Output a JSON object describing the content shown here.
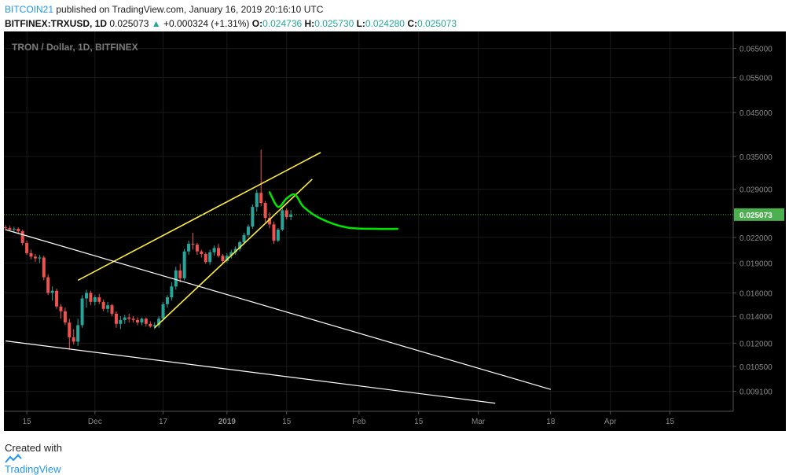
{
  "header": {
    "author": "BITCOIN21",
    "published_text": "published on TradingView.com, January 16, 2019 20:16:10 UTC",
    "symbol": "BITFINEX:TRXUSD, 1D",
    "last_price": "0.025073",
    "change_arrow": "▲",
    "change": "+0.000324 (+1.31%)",
    "o_label": "O:",
    "o_value": "0.024736",
    "h_label": "H:",
    "h_value": "0.025730",
    "l_label": "L:",
    "l_value": "0.024280",
    "c_label": "C:",
    "c_value": "0.025073"
  },
  "footer": {
    "created_with": "Created with",
    "brand": "TradingView"
  },
  "colors": {
    "background": "#000000",
    "up_candle": "#26a69a",
    "down_candle": "#ef5350",
    "yellow_lines": "#ffeb3b",
    "white_lines": "#ffffff",
    "green_projection": "#00e600",
    "price_line": "#4caf50"
  },
  "chart_data": {
    "type": "candlestick",
    "title": "TRON / Dollar, 1D, BITFINEX",
    "y_scale": "log",
    "ylim": [
      0.0083,
      0.0685
    ],
    "y_ticks": [
      "0.065000",
      "0.055000",
      "0.045000",
      "0.035000",
      "0.029000",
      "0.022000",
      "0.019000",
      "0.016000",
      "0.014000",
      "0.012000",
      "0.010500",
      "0.009100"
    ],
    "y_tick_values": [
      0.065,
      0.055,
      0.045,
      0.035,
      0.029,
      0.022,
      0.019,
      0.016,
      0.014,
      0.012,
      0.0105,
      0.0091
    ],
    "x_ticks": [
      "15",
      "Dec",
      "17",
      "2019",
      "15",
      "Feb",
      "15",
      "Mar",
      "18",
      "Apr",
      "15"
    ],
    "x_tick_dates": [
      "2018-11-15",
      "2018-12-01",
      "2018-12-17",
      "2019-01-01",
      "2019-01-15",
      "2019-02-01",
      "2019-02-15",
      "2019-03-01",
      "2019-03-18",
      "2019-04-01",
      "2019-04-15"
    ],
    "x_range": [
      "2018-11-10",
      "2019-04-20"
    ],
    "last_price": 0.025073,
    "last_price_label": "0.025073",
    "candles": [
      {
        "date": "2018-11-10",
        "o": 0.0233,
        "h": 0.0236,
        "l": 0.0229,
        "c": 0.0232
      },
      {
        "date": "2018-11-11",
        "o": 0.0232,
        "h": 0.0235,
        "l": 0.0228,
        "c": 0.023
      },
      {
        "date": "2018-11-12",
        "o": 0.023,
        "h": 0.0234,
        "l": 0.0227,
        "c": 0.0231
      },
      {
        "date": "2018-11-13",
        "o": 0.0231,
        "h": 0.0233,
        "l": 0.0225,
        "c": 0.0228
      },
      {
        "date": "2018-11-14",
        "o": 0.0228,
        "h": 0.023,
        "l": 0.021,
        "c": 0.0213
      },
      {
        "date": "2018-11-15",
        "o": 0.0213,
        "h": 0.0216,
        "l": 0.0199,
        "c": 0.0201
      },
      {
        "date": "2018-11-16",
        "o": 0.0201,
        "h": 0.0205,
        "l": 0.0194,
        "c": 0.0197
      },
      {
        "date": "2018-11-17",
        "o": 0.0197,
        "h": 0.02,
        "l": 0.0191,
        "c": 0.0195
      },
      {
        "date": "2018-11-18",
        "o": 0.0195,
        "h": 0.0199,
        "l": 0.019,
        "c": 0.0196
      },
      {
        "date": "2018-11-19",
        "o": 0.0196,
        "h": 0.0198,
        "l": 0.0172,
        "c": 0.0175
      },
      {
        "date": "2018-11-20",
        "o": 0.0175,
        "h": 0.0178,
        "l": 0.0158,
        "c": 0.016
      },
      {
        "date": "2018-11-21",
        "o": 0.016,
        "h": 0.0166,
        "l": 0.0153,
        "c": 0.0162
      },
      {
        "date": "2018-11-22",
        "o": 0.0162,
        "h": 0.0164,
        "l": 0.0146,
        "c": 0.0148
      },
      {
        "date": "2018-11-23",
        "o": 0.0148,
        "h": 0.015,
        "l": 0.0138,
        "c": 0.0144
      },
      {
        "date": "2018-11-24",
        "o": 0.0144,
        "h": 0.0147,
        "l": 0.0133,
        "c": 0.0135
      },
      {
        "date": "2018-11-25",
        "o": 0.0135,
        "h": 0.0138,
        "l": 0.0116,
        "c": 0.0124
      },
      {
        "date": "2018-11-26",
        "o": 0.0124,
        "h": 0.013,
        "l": 0.0119,
        "c": 0.0121
      },
      {
        "date": "2018-11-27",
        "o": 0.0121,
        "h": 0.0138,
        "l": 0.0118,
        "c": 0.0133
      },
      {
        "date": "2018-11-28",
        "o": 0.0133,
        "h": 0.0158,
        "l": 0.0131,
        "c": 0.0155
      },
      {
        "date": "2018-11-29",
        "o": 0.0155,
        "h": 0.0163,
        "l": 0.0147,
        "c": 0.016
      },
      {
        "date": "2018-11-30",
        "o": 0.016,
        "h": 0.0162,
        "l": 0.0149,
        "c": 0.0152
      },
      {
        "date": "2018-12-01",
        "o": 0.0152,
        "h": 0.0158,
        "l": 0.0149,
        "c": 0.0156
      },
      {
        "date": "2018-12-02",
        "o": 0.0156,
        "h": 0.0159,
        "l": 0.015,
        "c": 0.0152
      },
      {
        "date": "2018-12-03",
        "o": 0.0152,
        "h": 0.0154,
        "l": 0.0144,
        "c": 0.0146
      },
      {
        "date": "2018-12-04",
        "o": 0.0146,
        "h": 0.0152,
        "l": 0.0143,
        "c": 0.0149
      },
      {
        "date": "2018-12-05",
        "o": 0.0149,
        "h": 0.015,
        "l": 0.014,
        "c": 0.0142
      },
      {
        "date": "2018-12-06",
        "o": 0.0142,
        "h": 0.0144,
        "l": 0.0131,
        "c": 0.0134
      },
      {
        "date": "2018-12-07",
        "o": 0.0134,
        "h": 0.014,
        "l": 0.013,
        "c": 0.0137
      },
      {
        "date": "2018-12-08",
        "o": 0.0137,
        "h": 0.0141,
        "l": 0.0134,
        "c": 0.0139
      },
      {
        "date": "2018-12-09",
        "o": 0.0139,
        "h": 0.0142,
        "l": 0.0135,
        "c": 0.0138
      },
      {
        "date": "2018-12-10",
        "o": 0.0138,
        "h": 0.014,
        "l": 0.0135,
        "c": 0.0137
      },
      {
        "date": "2018-12-11",
        "o": 0.0137,
        "h": 0.0139,
        "l": 0.0133,
        "c": 0.0135
      },
      {
        "date": "2018-12-12",
        "o": 0.0135,
        "h": 0.0139,
        "l": 0.0133,
        "c": 0.0138
      },
      {
        "date": "2018-12-13",
        "o": 0.0138,
        "h": 0.0139,
        "l": 0.0132,
        "c": 0.0134
      },
      {
        "date": "2018-12-14",
        "o": 0.0134,
        "h": 0.0136,
        "l": 0.0131,
        "c": 0.0132
      },
      {
        "date": "2018-12-15",
        "o": 0.0132,
        "h": 0.0135,
        "l": 0.013,
        "c": 0.0133
      },
      {
        "date": "2018-12-16",
        "o": 0.0133,
        "h": 0.014,
        "l": 0.0131,
        "c": 0.0138
      },
      {
        "date": "2018-12-17",
        "o": 0.0138,
        "h": 0.0152,
        "l": 0.0136,
        "c": 0.015
      },
      {
        "date": "2018-12-18",
        "o": 0.015,
        "h": 0.0158,
        "l": 0.0147,
        "c": 0.0156
      },
      {
        "date": "2018-12-19",
        "o": 0.0156,
        "h": 0.017,
        "l": 0.0153,
        "c": 0.0166
      },
      {
        "date": "2018-12-20",
        "o": 0.0166,
        "h": 0.0186,
        "l": 0.0163,
        "c": 0.0182
      },
      {
        "date": "2018-12-21",
        "o": 0.0182,
        "h": 0.0189,
        "l": 0.017,
        "c": 0.0174
      },
      {
        "date": "2018-12-22",
        "o": 0.0174,
        "h": 0.0206,
        "l": 0.0172,
        "c": 0.0203
      },
      {
        "date": "2018-12-23",
        "o": 0.0203,
        "h": 0.0216,
        "l": 0.0199,
        "c": 0.0212
      },
      {
        "date": "2018-12-24",
        "o": 0.0212,
        "h": 0.0226,
        "l": 0.0205,
        "c": 0.0211
      },
      {
        "date": "2018-12-25",
        "o": 0.0211,
        "h": 0.0213,
        "l": 0.0199,
        "c": 0.0203
      },
      {
        "date": "2018-12-26",
        "o": 0.0203,
        "h": 0.0205,
        "l": 0.0196,
        "c": 0.02
      },
      {
        "date": "2018-12-27",
        "o": 0.02,
        "h": 0.0202,
        "l": 0.0189,
        "c": 0.0191
      },
      {
        "date": "2018-12-28",
        "o": 0.0191,
        "h": 0.0205,
        "l": 0.0188,
        "c": 0.0202
      },
      {
        "date": "2018-12-29",
        "o": 0.0202,
        "h": 0.021,
        "l": 0.0198,
        "c": 0.0207
      },
      {
        "date": "2018-12-30",
        "o": 0.0207,
        "h": 0.0212,
        "l": 0.0196,
        "c": 0.0198
      },
      {
        "date": "2018-12-31",
        "o": 0.0198,
        "h": 0.02,
        "l": 0.0189,
        "c": 0.0192
      },
      {
        "date": "2019-01-01",
        "o": 0.0192,
        "h": 0.0201,
        "l": 0.019,
        "c": 0.0198
      },
      {
        "date": "2019-01-02",
        "o": 0.0198,
        "h": 0.0205,
        "l": 0.0195,
        "c": 0.0202
      },
      {
        "date": "2019-01-03",
        "o": 0.0202,
        "h": 0.0209,
        "l": 0.0199,
        "c": 0.0206
      },
      {
        "date": "2019-01-04",
        "o": 0.0206,
        "h": 0.0216,
        "l": 0.0203,
        "c": 0.0214
      },
      {
        "date": "2019-01-05",
        "o": 0.0214,
        "h": 0.0226,
        "l": 0.0211,
        "c": 0.0223
      },
      {
        "date": "2019-01-06",
        "o": 0.0223,
        "h": 0.0237,
        "l": 0.022,
        "c": 0.0234
      },
      {
        "date": "2019-01-07",
        "o": 0.0234,
        "h": 0.0266,
        "l": 0.0231,
        "c": 0.0262
      },
      {
        "date": "2019-01-08",
        "o": 0.0262,
        "h": 0.0289,
        "l": 0.0255,
        "c": 0.0284
      },
      {
        "date": "2019-01-09",
        "o": 0.0284,
        "h": 0.0364,
        "l": 0.0263,
        "c": 0.0268
      },
      {
        "date": "2019-01-10",
        "o": 0.0268,
        "h": 0.0271,
        "l": 0.024,
        "c": 0.0246
      },
      {
        "date": "2019-01-11",
        "o": 0.0246,
        "h": 0.0254,
        "l": 0.0232,
        "c": 0.0237
      },
      {
        "date": "2019-01-12",
        "o": 0.0237,
        "h": 0.0241,
        "l": 0.0212,
        "c": 0.0216
      },
      {
        "date": "2019-01-13",
        "o": 0.0216,
        "h": 0.0232,
        "l": 0.0214,
        "c": 0.023
      },
      {
        "date": "2019-01-14",
        "o": 0.023,
        "h": 0.0262,
        "l": 0.0228,
        "c": 0.0257
      },
      {
        "date": "2019-01-15",
        "o": 0.0257,
        "h": 0.026,
        "l": 0.0244,
        "c": 0.0247
      },
      {
        "date": "2019-01-16",
        "o": 0.024736,
        "h": 0.02573,
        "l": 0.02428,
        "c": 0.025073
      }
    ],
    "drawings": [
      {
        "type": "trendline",
        "color": "yellow",
        "from": {
          "date": "2018-11-27",
          "price": 0.0172
        },
        "to": {
          "date": "2019-01-23",
          "price": 0.0358
        }
      },
      {
        "type": "trendline",
        "color": "yellow",
        "from": {
          "date": "2018-12-15",
          "price": 0.0131
        },
        "to": {
          "date": "2019-01-21",
          "price": 0.0307
        }
      },
      {
        "type": "trendline",
        "color": "white",
        "from": {
          "date": "2018-11-10",
          "price": 0.023
        },
        "to": {
          "date": "2019-03-18",
          "price": 0.0092
        }
      },
      {
        "type": "trendline",
        "color": "white",
        "from": {
          "date": "2018-11-10",
          "price": 0.01215
        },
        "to": {
          "date": "2019-03-05",
          "price": 0.0085
        }
      },
      {
        "type": "projection",
        "color": "green",
        "points": [
          {
            "date": "2019-01-11",
            "price": 0.0285
          },
          {
            "date": "2019-01-13",
            "price": 0.0262
          },
          {
            "date": "2019-01-15",
            "price": 0.0275
          },
          {
            "date": "2019-01-17",
            "price": 0.0281
          },
          {
            "date": "2019-01-19",
            "price": 0.0262
          },
          {
            "date": "2019-01-23",
            "price": 0.0245
          },
          {
            "date": "2019-01-29",
            "price": 0.0233
          },
          {
            "date": "2019-02-05",
            "price": 0.0231
          },
          {
            "date": "2019-02-10",
            "price": 0.0231
          }
        ]
      }
    ]
  }
}
